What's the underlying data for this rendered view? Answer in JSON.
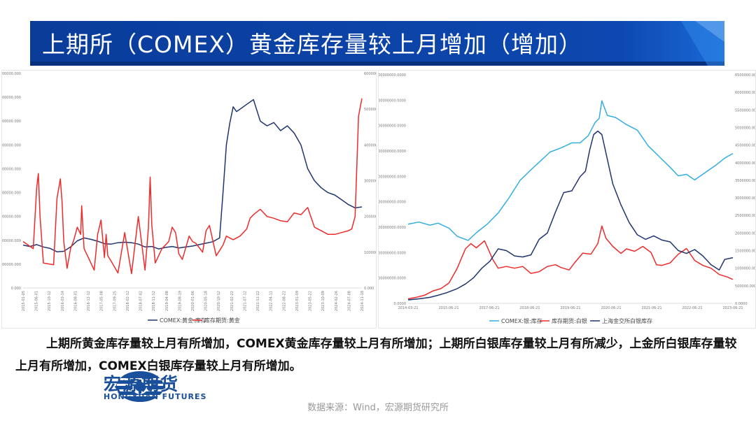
{
  "page": {
    "title": "上期所（COMEX）黄金库存量较上月增加（增加）",
    "summary": "上期所黄金库存量较上月有所增加，COMEX黄金库存量较上月有所增加；上期所白银库存量较上月有所减少，上金所白银库存量较上月有所增加，COMEX白银库存量较上月有所增加。",
    "logo_cn": "宏源期货",
    "logo_en": "HONGYUAN FUTURES",
    "source": "数据来源：Wind，宏源期货研究所",
    "colors": {
      "banner": "#0b3f9f",
      "banner_stripe": "#1565c0",
      "navy": "#1f3570",
      "red": "#ee2b2b",
      "cyan": "#33aee0"
    }
  },
  "chart_data": [
    {
      "type": "line",
      "left_ylim": [
        0,
        45000000
      ],
      "left_ticks": [
        "0.000",
        "5000000.000",
        "10000000.000",
        "15000000.000",
        "20000000.000",
        "25000000.000",
        "30000000.000",
        "35000000.000",
        "40000000.000",
        "45000000.000"
      ],
      "right_ylim": [
        0,
        6000000
      ],
      "right_ticks": [
        "0.000",
        "1000000.000",
        "2000000.000",
        "3000000.000",
        "4000000.000",
        "5000000.000",
        "6000000.000"
      ],
      "x_range": [
        0,
        100
      ],
      "x_ticks": [
        "2015-01-05",
        "2015-06-01",
        "2015-10-12",
        "2016-03-14",
        "2016-08-01",
        "2016-12-12",
        "2017-05-08",
        "2017-09-25",
        "2018-02-12",
        "2018-07-02",
        "2018-11-12",
        "2019-04-08",
        "2019-08-19",
        "2020-01-06",
        "2020-05-18",
        "2020-10-12",
        "2021-02-22",
        "2021-07-12",
        "2021-11-22",
        "2022-04-11",
        "2022-08-22",
        "2023-01-09",
        "2023-05-22",
        "2023-10-09",
        "2024-02-26",
        "2024-07-08",
        "2024-11-18"
      ],
      "series": [
        {
          "name": "COMEX:黄金:库存",
          "axis": "left",
          "color": "#1f3570",
          "x": [
            0,
            2,
            4,
            6,
            8,
            10,
            12,
            14,
            16,
            18,
            20,
            22,
            24,
            26,
            28,
            30,
            32,
            34,
            36,
            38,
            40,
            42,
            44,
            46,
            48,
            50,
            52,
            54,
            56,
            58,
            59,
            60,
            61,
            62,
            63,
            64,
            66,
            68,
            70,
            72,
            74,
            76,
            78,
            80,
            82,
            84,
            86,
            88,
            90,
            92,
            94,
            96,
            98,
            100
          ],
          "y": [
            9000000,
            8700000,
            9100000,
            8600000,
            8300000,
            7600000,
            7700000,
            8600000,
            9900000,
            10500000,
            10200000,
            9800000,
            9300000,
            9200000,
            9500000,
            9600000,
            9500000,
            9200000,
            8600000,
            8700000,
            8200000,
            8500000,
            8700000,
            8400000,
            8600000,
            8800000,
            9100000,
            9400000,
            9700000,
            10500000,
            20000000,
            30000000,
            34500000,
            38000000,
            37000000,
            37500000,
            38500000,
            39500000,
            35000000,
            34000000,
            34700000,
            33000000,
            34000000,
            32500000,
            30000000,
            25000000,
            22500000,
            21000000,
            20000000,
            19500000,
            18500000,
            17500000,
            16800000,
            17000000
          ]
        },
        {
          "name": "库存期货:黄金",
          "axis": "right",
          "color": "#ee2b2b",
          "x": [
            0,
            3,
            4,
            4.5,
            5,
            6,
            9,
            10,
            11,
            11.5,
            12,
            13,
            14,
            15,
            16,
            17,
            17.3,
            18,
            19,
            20,
            21,
            22,
            23,
            24,
            24.5,
            25,
            26,
            28,
            30,
            32,
            34,
            36,
            37,
            37.5,
            38,
            39,
            41,
            43,
            44,
            45,
            46,
            47,
            49,
            50,
            51,
            53,
            54,
            55,
            57,
            58,
            59,
            60,
            62,
            64,
            66,
            67,
            68,
            70,
            72,
            74,
            76,
            78,
            80,
            82,
            84,
            86,
            88,
            90,
            92,
            94,
            96,
            97,
            98,
            99,
            100
          ],
          "y": [
            1300000,
            1100000,
            2800000,
            3200000,
            2000000,
            700000,
            650000,
            2500000,
            3050000,
            2400000,
            1300000,
            550000,
            1100000,
            1350000,
            1700000,
            1500000,
            2300000,
            1100000,
            900000,
            700000,
            500000,
            1500000,
            1900000,
            850000,
            1500000,
            900000,
            750000,
            420000,
            1550000,
            400000,
            2000000,
            500000,
            1700000,
            3100000,
            1750000,
            700000,
            1100000,
            1300000,
            1700000,
            1550000,
            950000,
            800000,
            1450000,
            1300000,
            1250000,
            1000000,
            1600000,
            1750000,
            900000,
            1050000,
            1200000,
            1450000,
            1350000,
            1450000,
            1650000,
            1950000,
            2050000,
            2200000,
            2000000,
            1950000,
            1880000,
            1850000,
            2100000,
            2050000,
            2250000,
            1700000,
            1600000,
            1500000,
            1500000,
            1550000,
            1600000,
            1650000,
            2000000,
            4800000,
            5300000
          ]
        }
      ]
    },
    {
      "type": "line",
      "left_ylim": [
        0,
        4500000000
      ],
      "left_ticks": [
        "0.0000",
        "500000000.0000",
        "1000000000.0000",
        "1500000000.0000",
        "2000000000.0000",
        "2500000000.0000",
        "3000000000.0000",
        "3500000000.0000",
        "4000000000.0000",
        "4500000000.0000"
      ],
      "right_ylim": [
        0,
        6500000
      ],
      "right_ticks": [
        "0.0000",
        "500000.0000",
        "1000000.0000",
        "1500000.0000",
        "2000000.0000",
        "2500000.0000",
        "3000000.0000",
        "3500000.0000",
        "4000000.0000",
        "4500000.0000",
        "5000000.0000",
        "5500000.0000",
        "6000000.0000",
        "6500000.0000"
      ],
      "x_range": [
        2014,
        2025.9
      ],
      "x_ticks": [
        "2014-03-21",
        "2015-06-21",
        "2017-06-21",
        "2018-06-21",
        "2019-06-21",
        "2020-06-21",
        "2021-06-21",
        "2022-06-21",
        "2023-06-21"
      ],
      "series": [
        {
          "name": "COMEX:银:库存",
          "axis": "left",
          "color": "#33aee0",
          "x": [
            2014,
            2014.4,
            2014.8,
            2015.1,
            2015.5,
            2015.8,
            2016.2,
            2016.5,
            2016.9,
            2017.3,
            2017.7,
            2018.1,
            2018.5,
            2018.9,
            2019.2,
            2019.6,
            2020.0,
            2020.3,
            2020.6,
            2020.85,
            2021.0,
            2021.1,
            2021.3,
            2021.6,
            2022.0,
            2022.4,
            2022.8,
            2023.2,
            2023.6,
            2023.9,
            2024.2,
            2024.5,
            2024.9,
            2025.3,
            2025.6,
            2025.9
          ],
          "y": [
            1560000000,
            1600000000,
            1540000000,
            1580000000,
            1480000000,
            1320000000,
            1240000000,
            1390000000,
            1560000000,
            1780000000,
            2080000000,
            2420000000,
            2630000000,
            2830000000,
            2980000000,
            3060000000,
            3160000000,
            3160000000,
            3300000000,
            3560000000,
            3640000000,
            3990000000,
            3700000000,
            3660000000,
            3520000000,
            3410000000,
            3100000000,
            2890000000,
            2680000000,
            2510000000,
            2540000000,
            2430000000,
            2580000000,
            2730000000,
            2860000000,
            2950000000
          ]
        },
        {
          "name": "库存期货:白银",
          "axis": "right",
          "color": "#ee2b2b",
          "x": [
            2014,
            2014.3,
            2014.6,
            2014.9,
            2015.2,
            2015.5,
            2015.8,
            2016.1,
            2016.3,
            2016.5,
            2016.8,
            2017.1,
            2017.3,
            2017.6,
            2017.9,
            2018.2,
            2018.5,
            2018.8,
            2019.1,
            2019.4,
            2019.6,
            2019.9,
            2020.1,
            2020.4,
            2020.7,
            2020.95,
            2021.1,
            2021.25,
            2021.5,
            2021.8,
            2022.0,
            2022.3,
            2022.6,
            2022.9,
            2023.1,
            2023.3,
            2023.6,
            2023.9,
            2024.2,
            2024.5,
            2024.8,
            2025.1,
            2025.4,
            2025.7,
            2025.9
          ],
          "y": [
            130000,
            170000,
            230000,
            350000,
            420000,
            580000,
            1000000,
            1550000,
            1700000,
            1580000,
            1780000,
            1250000,
            1000000,
            1050000,
            1000000,
            1050000,
            850000,
            900000,
            1050000,
            1100000,
            1020000,
            950000,
            1150000,
            1430000,
            1400000,
            1700000,
            2200000,
            1850000,
            1620000,
            1420000,
            1550000,
            1480000,
            1620000,
            1450000,
            1100000,
            1080000,
            1150000,
            1400000,
            1560000,
            1220000,
            1080000,
            1000000,
            820000,
            750000,
            680000
          ]
        },
        {
          "name": "上海金交所白银库存",
          "axis": "right",
          "color": "#1f3570",
          "x": [
            2014,
            2014.4,
            2014.8,
            2015.1,
            2015.4,
            2015.8,
            2016.1,
            2016.4,
            2016.7,
            2017.0,
            2017.3,
            2017.6,
            2017.9,
            2018.2,
            2018.5,
            2018.8,
            2019.1,
            2019.4,
            2019.7,
            2020.0,
            2020.3,
            2020.5,
            2020.65,
            2020.8,
            2020.95,
            2021.1,
            2021.3,
            2021.5,
            2021.8,
            2022.1,
            2022.4,
            2022.7,
            2023.0,
            2023.3,
            2023.6,
            2023.9,
            2024.2,
            2024.5,
            2024.8,
            2025.1,
            2025.4,
            2025.6,
            2025.9
          ],
          "y": [
            100000,
            130000,
            170000,
            230000,
            300000,
            420000,
            550000,
            730000,
            1000000,
            1200000,
            1550000,
            1500000,
            1350000,
            1320000,
            1380000,
            1820000,
            2000000,
            2600000,
            3150000,
            3200000,
            3600000,
            3760000,
            4350000,
            4800000,
            4900000,
            4800000,
            4100000,
            3400000,
            2800000,
            2300000,
            1950000,
            1820000,
            1920000,
            1800000,
            1750000,
            1500000,
            1420000,
            1530000,
            1350000,
            1100000,
            950000,
            1250000,
            1300000
          ]
        }
      ]
    }
  ]
}
